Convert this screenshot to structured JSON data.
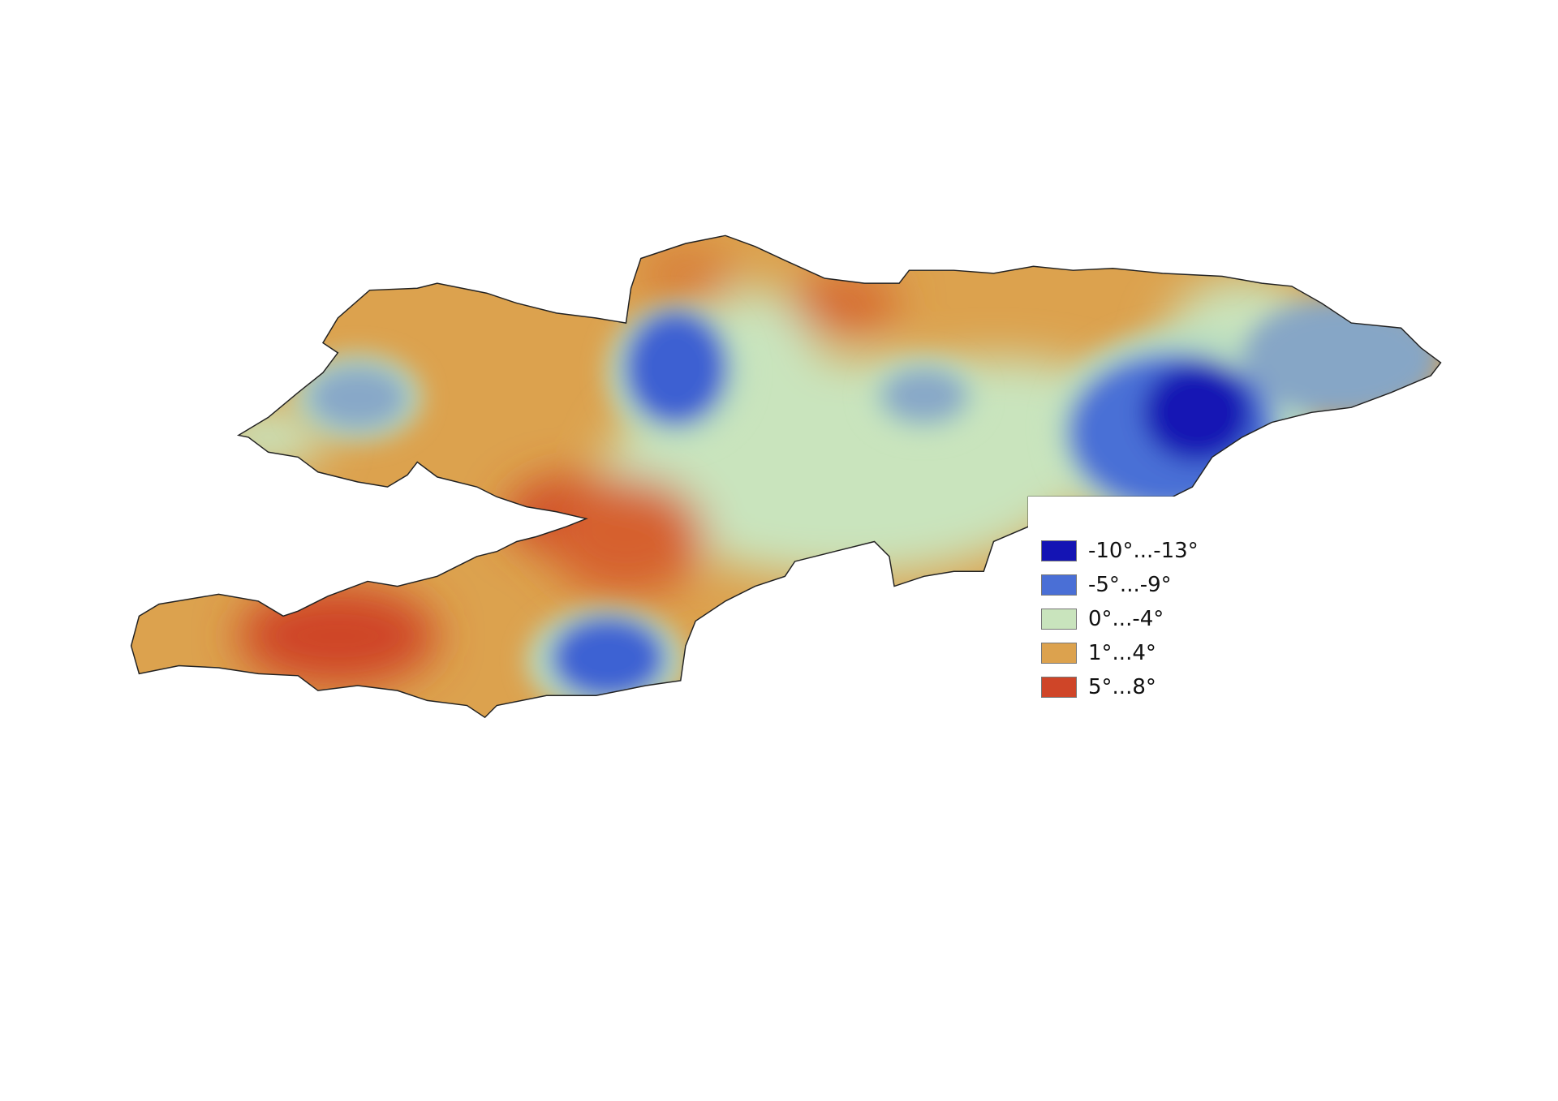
{
  "legend": {
    "items": [
      {
        "label": "-10°...-13°",
        "color": "#1414b4"
      },
      {
        "label": "-5°...-9°",
        "color": "#4a6fd6"
      },
      {
        "label": "0°...-4°",
        "color": "#c9e4bd"
      },
      {
        "label": "1°...4°",
        "color": "#dca24e"
      },
      {
        "label": "5°...8°",
        "color": "#cf4528"
      }
    ]
  }
}
